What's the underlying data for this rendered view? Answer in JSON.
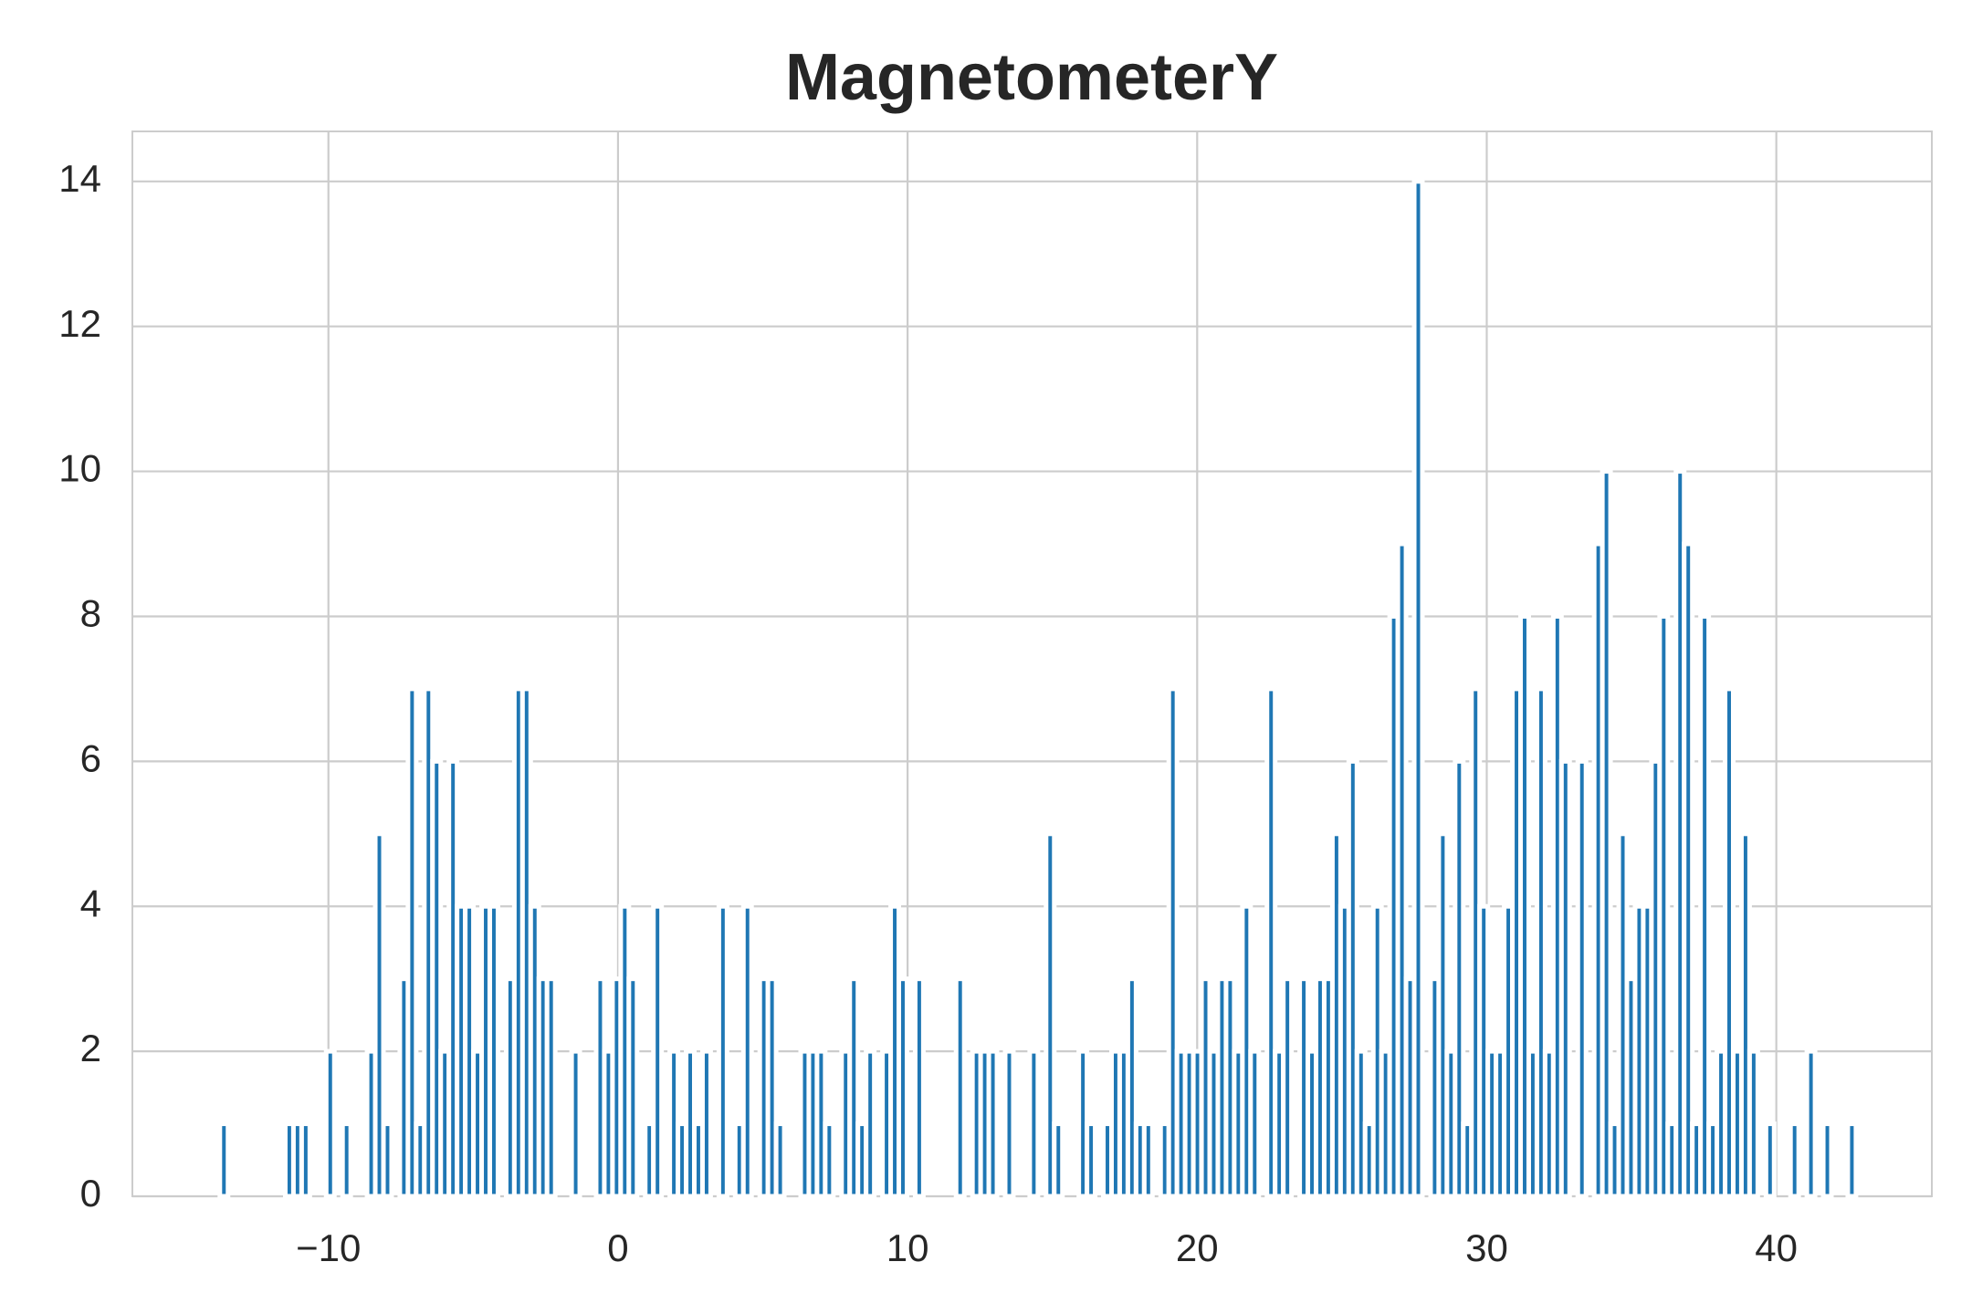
{
  "chart_data": {
    "type": "histogram",
    "title": "MagnetometerY",
    "color": "#1f77b4",
    "grid": true,
    "bins": [
      -13.75,
      -13.4675,
      -13.185,
      -12.9025,
      -12.62,
      -12.3375,
      -12.055,
      -11.7725,
      -11.49,
      -11.2075,
      -10.925,
      -10.6425,
      -10.36,
      -10.0775,
      -9.795,
      -9.5125,
      -9.23,
      -8.9475,
      -8.665,
      -8.3825,
      -8.1,
      -7.8175,
      -7.535,
      -7.2525,
      -6.97,
      -6.6875,
      -6.405,
      -6.1225,
      -5.84,
      -5.5575,
      -5.275,
      -4.9925,
      -4.71,
      -4.4275,
      -4.145,
      -3.8625,
      -3.58,
      -3.2975,
      -3.015,
      -2.7325,
      -2.45,
      -2.1675,
      -1.885,
      -1.6025,
      -1.32,
      -1.0375,
      -0.755,
      -0.4725,
      -0.19,
      0.0925,
      0.375,
      0.6575,
      0.94,
      1.2225,
      1.505,
      1.7875,
      2.07,
      2.3525,
      2.635,
      2.9175,
      3.2,
      3.4825,
      3.765,
      4.0475,
      4.33,
      4.6125,
      4.895,
      5.1775,
      5.46,
      5.7425,
      6.025,
      6.3075,
      6.59,
      6.8725,
      7.155,
      7.4375,
      7.72,
      8.0025,
      8.285,
      8.5675,
      8.85,
      9.1325,
      9.415,
      9.6975,
      9.98,
      10.2625,
      10.545,
      10.8275,
      11.11,
      11.3925,
      11.675,
      11.9575,
      12.24,
      12.5225,
      12.805,
      13.0875,
      13.37,
      13.6525,
      13.935,
      14.2175,
      14.5,
      14.7825,
      15.065,
      15.3475,
      15.63,
      15.9125,
      16.195,
      16.4775,
      16.76,
      17.0425,
      17.325,
      17.6075,
      17.89,
      18.1725,
      18.455,
      18.7375,
      19.02,
      19.3025,
      19.585,
      19.8675,
      20.15,
      20.4325,
      20.715,
      20.9975,
      21.28,
      21.5625,
      21.845,
      22.1275,
      22.41,
      22.6925,
      22.975,
      23.2575,
      23.54,
      23.8225,
      24.105,
      24.3875,
      24.67,
      24.9525,
      25.235,
      25.5175,
      25.8,
      26.0825,
      26.365,
      26.6475,
      26.93,
      27.2125,
      27.495,
      27.7775,
      28.06,
      28.3425,
      28.625,
      28.9075,
      29.19,
      29.4725,
      29.755,
      30.0375,
      30.32,
      30.6025,
      30.885,
      31.1675,
      31.45,
      31.7325,
      32.015,
      32.2975,
      32.58,
      32.8625,
      33.145,
      33.4275,
      33.71,
      33.9925,
      34.275,
      34.5575,
      34.84,
      35.1225,
      35.405,
      35.6875,
      35.97,
      36.2525,
      36.535,
      36.8175,
      37.1,
      37.3825,
      37.665,
      37.9475,
      38.23,
      38.5125,
      38.795,
      39.0775,
      39.36,
      39.6425,
      39.925,
      40.2075,
      40.49,
      40.7725,
      41.055,
      41.3375,
      41.62,
      41.9025,
      42.185,
      42.4675,
      42.75
    ],
    "values": [
      1,
      0,
      0,
      0,
      0,
      0,
      0,
      0,
      1,
      1,
      1,
      0,
      0,
      2,
      0,
      1,
      0,
      0,
      2,
      5,
      1,
      0,
      3,
      7,
      1,
      7,
      6,
      2,
      6,
      4,
      4,
      2,
      4,
      4,
      0,
      3,
      7,
      7,
      4,
      3,
      3,
      0,
      0,
      2,
      0,
      0,
      3,
      2,
      3,
      4,
      3,
      0,
      1,
      4,
      0,
      2,
      1,
      2,
      1,
      2,
      0,
      4,
      0,
      1,
      4,
      0,
      3,
      3,
      1,
      0,
      0,
      2,
      2,
      2,
      1,
      0,
      2,
      3,
      1,
      2,
      0,
      2,
      4,
      3,
      0,
      3,
      0,
      0,
      0,
      0,
      3,
      0,
      2,
      2,
      2,
      0,
      2,
      0,
      0,
      2,
      0,
      5,
      1,
      0,
      0,
      2,
      1,
      0,
      1,
      2,
      2,
      3,
      1,
      1,
      0,
      1,
      7,
      2,
      2,
      2,
      3,
      2,
      3,
      3,
      2,
      4,
      2,
      0,
      7,
      2,
      3,
      0,
      3,
      2,
      3,
      3,
      5,
      4,
      6,
      2,
      1,
      4,
      2,
      8,
      9,
      3,
      14,
      0,
      3,
      5,
      2,
      6,
      1,
      7,
      4,
      2,
      2,
      4,
      7,
      8,
      2,
      7,
      2,
      8,
      6,
      0,
      6,
      0,
      9,
      10,
      1,
      5,
      3,
      4,
      4,
      6,
      8,
      1,
      10,
      9,
      1,
      8,
      1,
      2,
      7,
      2,
      5,
      2,
      0,
      1,
      0,
      0,
      1,
      0,
      2,
      0,
      1,
      0,
      0,
      1
    ],
    "xlim": [
      -16.77,
      45.37
    ],
    "ylim": [
      0,
      14.69
    ],
    "xticks": [
      {
        "value": -10,
        "label": "−10"
      },
      0,
      10,
      20,
      30,
      40
    ],
    "yticks": [
      0,
      2,
      4,
      6,
      8,
      10,
      12,
      14
    ]
  }
}
